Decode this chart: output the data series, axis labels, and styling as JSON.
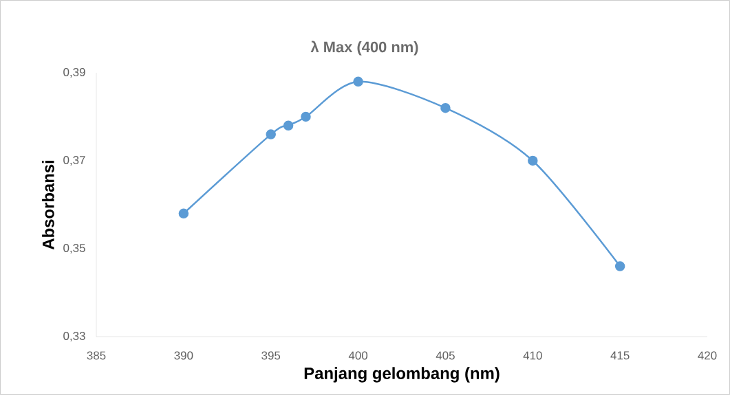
{
  "chart_data": {
    "type": "line",
    "title": "λ Max (400 nm)",
    "xlabel": "Panjang gelombang (nm)",
    "ylabel": "Absorbansi",
    "x": [
      390,
      395,
      396,
      397,
      400,
      405,
      410,
      415
    ],
    "series": [
      {
        "color": "#5b9bd5",
        "values": [
          0.358,
          0.376,
          0.378,
          0.38,
          0.388,
          0.382,
          0.37,
          0.346
        ]
      }
    ],
    "xlim": [
      385,
      420
    ],
    "xticks": [
      385,
      390,
      395,
      400,
      405,
      410,
      415,
      420
    ],
    "ylim": [
      0.33,
      0.39
    ],
    "yticks": [
      {
        "value": 0.33,
        "label": "0,33"
      },
      {
        "value": 0.35,
        "label": "0,35"
      },
      {
        "value": 0.37,
        "label": "0,37"
      },
      {
        "value": 0.39,
        "label": "0,39"
      }
    ],
    "marker": "circle",
    "grid": false
  }
}
